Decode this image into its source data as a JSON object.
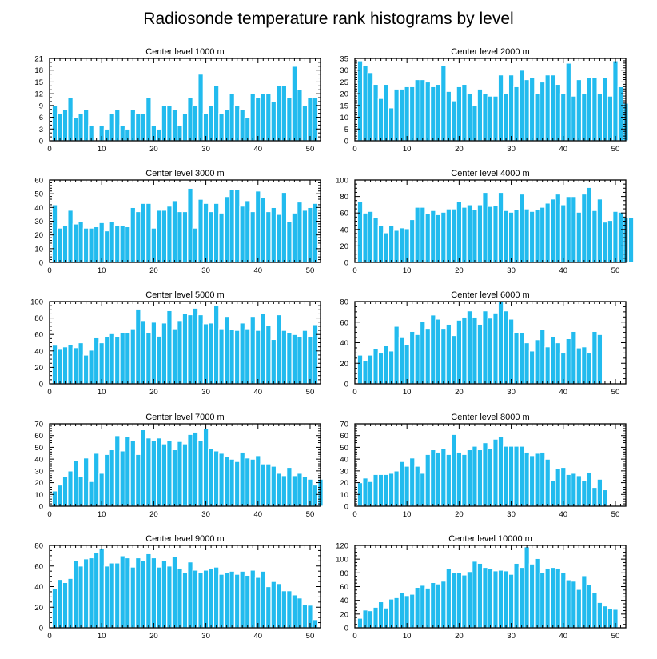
{
  "title": "Radiosonde temperature rank histograms by level",
  "colors": {
    "bar": "#22bbee",
    "frame": "#000000",
    "background": "#ffffff"
  },
  "chart_data": [
    {
      "type": "bar",
      "title": "Center level 1000 m",
      "xlim": [
        0,
        52
      ],
      "ylim": [
        0,
        21
      ],
      "xticks": [
        0,
        10,
        20,
        30,
        40,
        50
      ],
      "yticks": [
        0,
        3,
        6,
        9,
        12,
        15,
        18,
        21
      ],
      "y_minor": 1,
      "values": [
        9,
        7,
        8,
        11,
        6,
        7,
        8,
        4,
        0,
        4,
        3,
        7,
        8,
        4,
        3,
        8,
        7,
        7,
        11,
        4,
        3,
        9,
        9,
        8,
        4,
        7,
        11,
        9,
        17,
        7,
        9,
        14,
        7,
        8,
        12,
        9,
        8,
        6,
        12,
        11,
        12,
        12,
        10,
        14,
        14,
        11,
        19,
        13,
        9,
        11,
        11
      ]
    },
    {
      "type": "bar",
      "title": "Center level 2000 m",
      "xlim": [
        0,
        52
      ],
      "ylim": [
        0,
        35
      ],
      "xticks": [
        0,
        10,
        20,
        30,
        40,
        50
      ],
      "yticks": [
        0,
        5,
        10,
        15,
        20,
        25,
        30,
        35
      ],
      "y_minor": 1,
      "values": [
        34,
        32,
        29,
        24,
        18,
        24,
        14,
        22,
        22,
        23,
        23,
        26,
        26,
        25,
        23,
        24,
        32,
        21,
        17,
        23,
        24,
        20,
        15,
        22,
        20,
        19,
        19,
        28,
        20,
        28,
        23,
        30,
        26,
        27,
        20,
        25,
        28,
        28,
        24,
        20,
        33,
        19,
        26,
        20,
        27,
        27,
        20,
        27,
        19,
        34,
        23,
        16
      ]
    },
    {
      "type": "bar",
      "title": "Center level 3000 m",
      "xlim": [
        0,
        52
      ],
      "ylim": [
        0,
        60
      ],
      "xticks": [
        0,
        10,
        20,
        30,
        40,
        50
      ],
      "yticks": [
        0,
        10,
        20,
        30,
        40,
        50,
        60
      ],
      "y_minor": 2,
      "values": [
        42,
        25,
        27,
        38,
        28,
        30,
        25,
        25,
        26,
        29,
        23,
        30,
        27,
        27,
        26,
        40,
        37,
        43,
        43,
        25,
        38,
        38,
        41,
        45,
        37,
        37,
        54,
        25,
        46,
        43,
        37,
        43,
        36,
        48,
        53,
        53,
        41,
        45,
        37,
        52,
        47,
        37,
        40,
        35,
        51,
        30,
        36,
        44,
        38,
        40,
        43
      ]
    },
    {
      "type": "bar",
      "title": "Center level 4000 m",
      "xlim": [
        0,
        52
      ],
      "ylim": [
        0,
        100
      ],
      "xticks": [
        0,
        10,
        20,
        30,
        40,
        50
      ],
      "yticks": [
        0,
        20,
        40,
        60,
        80,
        100
      ],
      "y_minor": 5,
      "values": [
        74,
        60,
        62,
        55,
        45,
        36,
        45,
        39,
        42,
        41,
        52,
        67,
        67,
        59,
        63,
        58,
        61,
        65,
        65,
        74,
        67,
        70,
        64,
        70,
        85,
        68,
        69,
        85,
        63,
        61,
        64,
        83,
        65,
        62,
        64,
        67,
        72,
        77,
        83,
        70,
        80,
        80,
        61,
        83,
        91,
        63,
        77,
        49,
        51,
        62,
        61,
        55,
        55
      ]
    },
    {
      "type": "bar",
      "title": "Center level 5000 m",
      "xlim": [
        0,
        52
      ],
      "ylim": [
        0,
        100
      ],
      "xticks": [
        0,
        10,
        20,
        30,
        40,
        50
      ],
      "yticks": [
        0,
        20,
        40,
        60,
        80,
        100
      ],
      "y_minor": 5,
      "values": [
        47,
        42,
        45,
        48,
        44,
        50,
        35,
        41,
        56,
        50,
        57,
        61,
        57,
        62,
        62,
        67,
        91,
        77,
        62,
        75,
        58,
        74,
        89,
        67,
        77,
        86,
        84,
        92,
        84,
        73,
        74,
        95,
        67,
        82,
        66,
        65,
        74,
        67,
        82,
        65,
        86,
        71,
        54,
        84,
        65,
        62,
        60,
        57,
        65,
        57,
        72
      ]
    },
    {
      "type": "bar",
      "title": "Center level 6000 m",
      "xlim": [
        0,
        52
      ],
      "ylim": [
        0,
        80
      ],
      "xticks": [
        0,
        10,
        20,
        30,
        40,
        50
      ],
      "yticks": [
        0,
        20,
        40,
        60,
        80
      ],
      "y_minor": 5,
      "values": [
        28,
        23,
        28,
        34,
        30,
        37,
        32,
        56,
        45,
        38,
        51,
        48,
        61,
        54,
        67,
        63,
        54,
        58,
        47,
        62,
        65,
        71,
        65,
        58,
        71,
        64,
        69,
        80,
        71,
        63,
        50,
        50,
        40,
        32,
        43,
        53,
        36,
        46,
        40,
        30,
        44,
        51,
        35,
        36,
        30,
        51,
        48
      ]
    },
    {
      "type": "bar",
      "title": "Center level 7000 m",
      "xlim": [
        0,
        52
      ],
      "ylim": [
        0,
        70
      ],
      "xticks": [
        0,
        10,
        20,
        30,
        40,
        50
      ],
      "yticks": [
        0,
        10,
        20,
        30,
        40,
        50,
        60,
        70
      ],
      "y_minor": 2,
      "values": [
        13,
        18,
        25,
        30,
        39,
        25,
        41,
        21,
        45,
        28,
        44,
        48,
        60,
        47,
        59,
        56,
        44,
        65,
        58,
        56,
        58,
        53,
        56,
        48,
        55,
        53,
        61,
        63,
        56,
        66,
        49,
        47,
        45,
        42,
        40,
        38,
        46,
        41,
        40,
        43,
        36,
        36,
        34,
        28,
        26,
        33,
        26,
        28,
        25,
        23,
        18,
        23
      ]
    },
    {
      "type": "bar",
      "title": "Center level 8000 m",
      "xlim": [
        0,
        52
      ],
      "ylim": [
        0,
        70
      ],
      "xticks": [
        0,
        10,
        20,
        30,
        40,
        50
      ],
      "yticks": [
        0,
        10,
        20,
        30,
        40,
        50,
        60,
        70
      ],
      "y_minor": 2,
      "values": [
        20,
        24,
        21,
        27,
        27,
        27,
        28,
        30,
        38,
        34,
        41,
        34,
        28,
        44,
        48,
        46,
        49,
        44,
        61,
        46,
        44,
        48,
        51,
        48,
        54,
        49,
        57,
        59,
        51,
        51,
        51,
        51,
        46,
        43,
        45,
        46,
        40,
        22,
        32,
        33,
        27,
        28,
        26,
        22,
        29,
        16,
        23,
        14
      ]
    },
    {
      "type": "bar",
      "title": "Center level 9000 m",
      "xlim": [
        0,
        52
      ],
      "ylim": [
        0,
        80
      ],
      "xticks": [
        0,
        10,
        20,
        30,
        40,
        50
      ],
      "yticks": [
        0,
        20,
        40,
        60,
        80
      ],
      "y_minor": 5,
      "values": [
        38,
        47,
        44,
        48,
        65,
        60,
        67,
        68,
        73,
        77,
        60,
        63,
        63,
        70,
        68,
        59,
        68,
        65,
        72,
        68,
        59,
        65,
        60,
        69,
        58,
        54,
        64,
        56,
        54,
        56,
        58,
        59,
        52,
        54,
        55,
        52,
        55,
        51,
        56,
        49,
        55,
        40,
        45,
        43,
        36,
        36,
        32,
        29,
        23,
        22,
        8
      ]
    },
    {
      "type": "bar",
      "title": "Center level 10000 m",
      "xlim": [
        0,
        52
      ],
      "ylim": [
        0,
        120
      ],
      "xticks": [
        0,
        10,
        20,
        30,
        40,
        50
      ],
      "yticks": [
        0,
        20,
        40,
        60,
        80,
        100,
        120
      ],
      "y_minor": 5,
      "values": [
        14,
        26,
        25,
        30,
        38,
        29,
        42,
        44,
        52,
        47,
        49,
        59,
        62,
        58,
        66,
        64,
        68,
        86,
        80,
        80,
        77,
        82,
        97,
        94,
        88,
        86,
        83,
        84,
        83,
        78,
        94,
        88,
        118,
        93,
        101,
        80,
        87,
        88,
        87,
        81,
        70,
        68,
        56,
        76,
        63,
        52,
        37,
        32,
        28,
        27
      ]
    }
  ]
}
